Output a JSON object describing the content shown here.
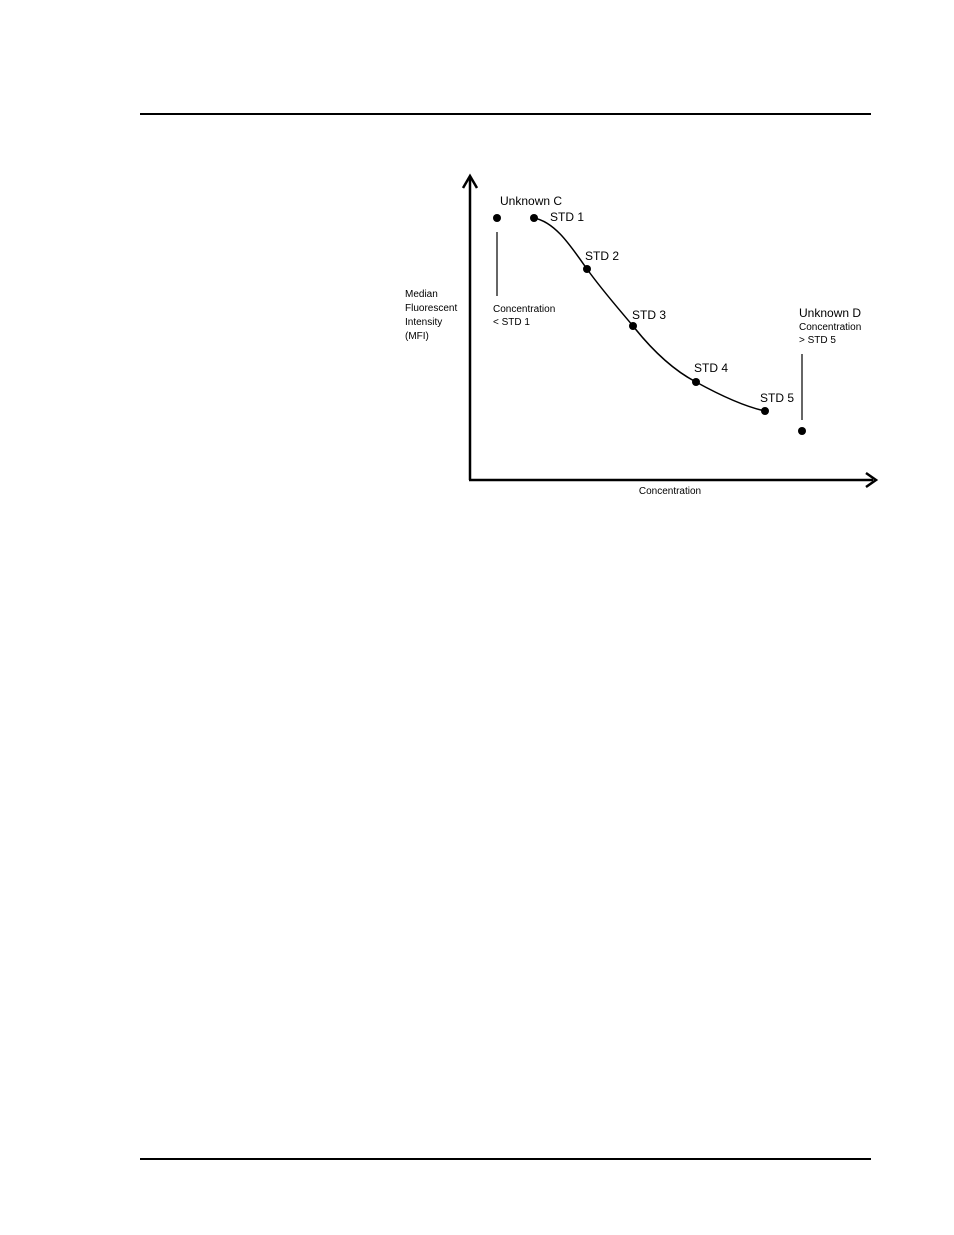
{
  "figure": {
    "y_axis_label": [
      "Median",
      "Fluorescent",
      "Intensity",
      "(MFI)"
    ],
    "x_axis_label": "Concentration",
    "standards": [
      {
        "label": "STD 1"
      },
      {
        "label": "STD 2"
      },
      {
        "label": "STD 3"
      },
      {
        "label": "STD 4"
      },
      {
        "label": "STD 5"
      }
    ],
    "unknown_c": {
      "label": "Unknown C",
      "note": [
        "Concentration",
        "< STD 1"
      ]
    },
    "unknown_d": {
      "label": "Unknown D",
      "note": [
        "Concentration",
        "> STD 5"
      ]
    }
  }
}
